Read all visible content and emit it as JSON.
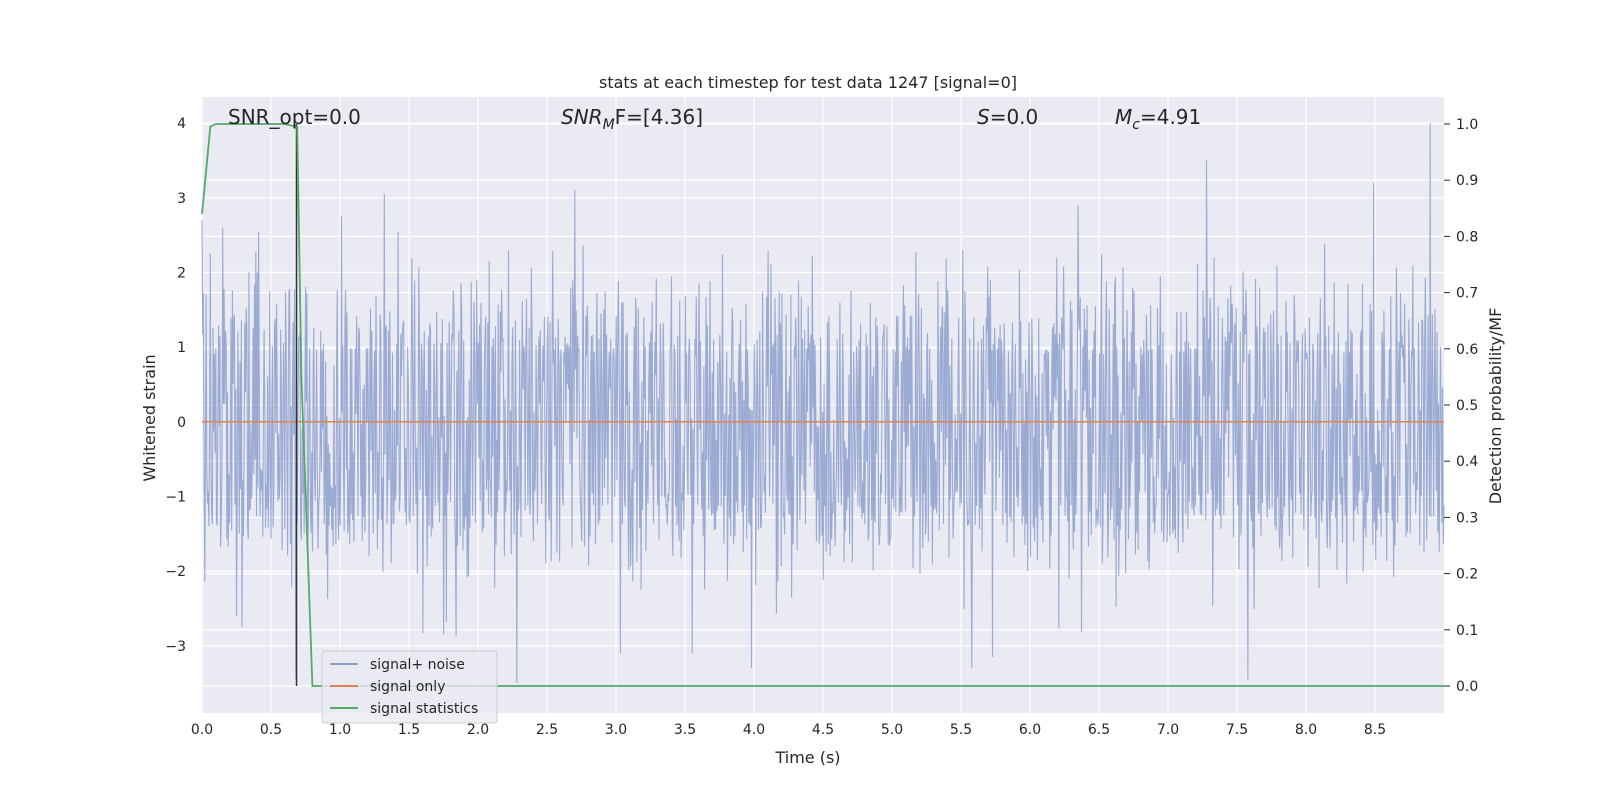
{
  "chart_data": {
    "type": "line",
    "title": "stats at each timestep for test data 1247 [signal=0]",
    "xlabel": "Time (s)",
    "ylabel": "Whitened strain",
    "y2label": "Detection probability/MF",
    "xlim": [
      0.0,
      9.0
    ],
    "ylim": [
      -3.9,
      4.35
    ],
    "y2lim": [
      -0.048,
      1.048
    ],
    "x_ticks": [
      "0.0",
      "0.5",
      "1.0",
      "1.5",
      "2.0",
      "2.5",
      "3.0",
      "3.5",
      "4.0",
      "4.5",
      "5.0",
      "5.5",
      "6.0",
      "6.5",
      "7.0",
      "7.5",
      "8.0",
      "8.5"
    ],
    "y_ticks": [
      "4",
      "3",
      "2",
      "1",
      "0",
      "−1",
      "−2",
      "−3"
    ],
    "y2_ticks": [
      "1.0",
      "0.9",
      "0.8",
      "0.7",
      "0.6",
      "0.5",
      "0.4",
      "0.3",
      "0.2",
      "0.1",
      "0.0"
    ],
    "grid": true,
    "legend_placement": "lower-left",
    "annotations": {
      "snr_opt": "SNR_opt=0.0",
      "snr_mf_sym": "SNR",
      "snr_mf_sub": "M",
      "snr_mf_rest": "F=[4.36]",
      "s_sym": "S",
      "s_rest": "=0.0",
      "mc_sym": "M",
      "mc_sub": "c",
      "mc_rest": "=4.91"
    },
    "series": [
      {
        "name": "signal+ noise",
        "color": "#8c9fcd",
        "axis": "left",
        "noise_envelope": {
          "typical_amplitude": 1.7,
          "max": 4.0,
          "min": -3.5
        },
        "peaks": [
          {
            "x": 0.06,
            "y": 2.25
          },
          {
            "x": 0.15,
            "y": 2.6
          },
          {
            "x": 0.29,
            "y": -2.75
          },
          {
            "x": 0.41,
            "y": 2.55
          },
          {
            "x": 0.68,
            "y": -3.45
          },
          {
            "x": 1.01,
            "y": 2.75
          },
          {
            "x": 1.32,
            "y": 3.05
          },
          {
            "x": 1.75,
            "y": -2.85
          },
          {
            "x": 2.28,
            "y": -3.5
          },
          {
            "x": 2.7,
            "y": 3.1
          },
          {
            "x": 3.03,
            "y": -3.1
          },
          {
            "x": 3.55,
            "y": -3.1
          },
          {
            "x": 3.98,
            "y": -3.3
          },
          {
            "x": 5.58,
            "y": -3.3
          },
          {
            "x": 5.73,
            "y": -3.15
          },
          {
            "x": 6.35,
            "y": 2.9
          },
          {
            "x": 7.28,
            "y": 3.5
          },
          {
            "x": 7.58,
            "y": -3.45
          },
          {
            "x": 8.49,
            "y": 3.2
          },
          {
            "x": 8.9,
            "y": 4.0
          }
        ]
      },
      {
        "name": "signal only",
        "color": "#dd8452",
        "axis": "left",
        "x": [
          0.0,
          9.0
        ],
        "y": [
          0.0,
          0.0
        ]
      },
      {
        "name": "signal statistics",
        "color": "#55a868",
        "axis": "right",
        "x": [
          0.0,
          0.06,
          0.1,
          0.2,
          0.4,
          0.6,
          0.69,
          0.72,
          0.75,
          0.8,
          0.85,
          1.0,
          2.0,
          3.0,
          4.0,
          5.0,
          6.0,
          7.0,
          8.0,
          9.0
        ],
        "y": [
          0.84,
          0.995,
          1.0,
          1.0,
          1.0,
          1.0,
          0.995,
          0.55,
          0.35,
          0.0,
          0.0,
          0.0,
          0.0,
          0.0,
          0.0,
          0.0,
          0.0,
          0.0,
          0.0,
          0.0
        ]
      }
    ],
    "marker_line": {
      "x": 0.685,
      "y_top": 1.0,
      "y_bottom": 0.0,
      "color": "#333333"
    }
  }
}
